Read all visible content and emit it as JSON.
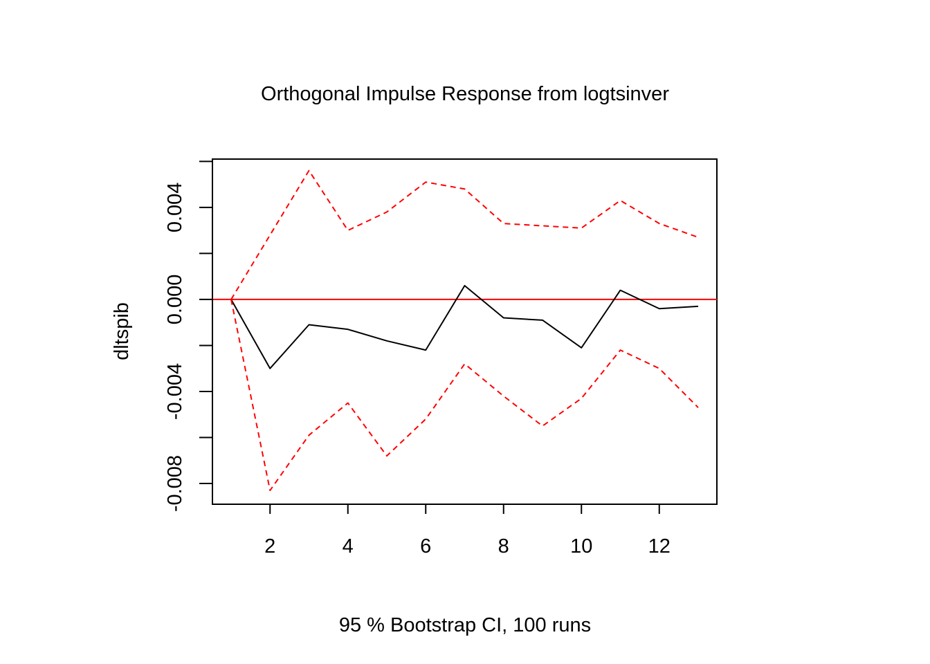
{
  "chart_data": {
    "type": "line",
    "title": "Orthogonal Impulse Response from logtsinver",
    "xlabel": "95 % Bootstrap CI,  100 runs",
    "ylabel": "dltspib",
    "xlim": [
      0.52,
      13.48
    ],
    "ylim": [
      -0.0089,
      0.0061
    ],
    "x_ticks": [
      2,
      4,
      6,
      8,
      10,
      12
    ],
    "x_tick_labels": [
      "2",
      "4",
      "6",
      "8",
      "10",
      "12"
    ],
    "y_ticks": [
      -0.01,
      -0.008,
      -0.006,
      -0.004,
      -0.002,
      0.0,
      0.002,
      0.004,
      0.006
    ],
    "y_tick_labels": [
      "-0.008",
      "-0.004",
      "0.000",
      "0.004"
    ],
    "y_tick_label_values": [
      -0.008,
      -0.004,
      0.0,
      0.004
    ],
    "reference_line": {
      "y": 0.0,
      "color": "#ff0000"
    },
    "x": [
      1,
      2,
      3,
      4,
      5,
      6,
      7,
      8,
      9,
      10,
      11,
      12,
      13
    ],
    "series": [
      {
        "values": [
          0.0,
          -0.003,
          -0.0011,
          -0.0013,
          -0.0018,
          -0.0022,
          0.0006,
          -0.0008,
          -0.0009,
          -0.0021,
          0.0004,
          -0.0004,
          -0.0003
        ],
        "color": "#000000",
        "style": "solid"
      },
      {
        "values": [
          0.0,
          0.0028,
          0.0056,
          0.003,
          0.0038,
          0.0051,
          0.0048,
          0.0033,
          0.0032,
          0.0031,
          0.0043,
          0.0033,
          0.0027
        ],
        "color": "#ff0000",
        "style": "dashed"
      },
      {
        "values": [
          0.0,
          -0.0083,
          -0.0059,
          -0.0045,
          -0.0068,
          -0.0052,
          -0.0028,
          -0.0042,
          -0.0055,
          -0.0043,
          -0.0022,
          -0.003,
          -0.0047
        ],
        "color": "#ff0000",
        "style": "dashed"
      }
    ]
  }
}
